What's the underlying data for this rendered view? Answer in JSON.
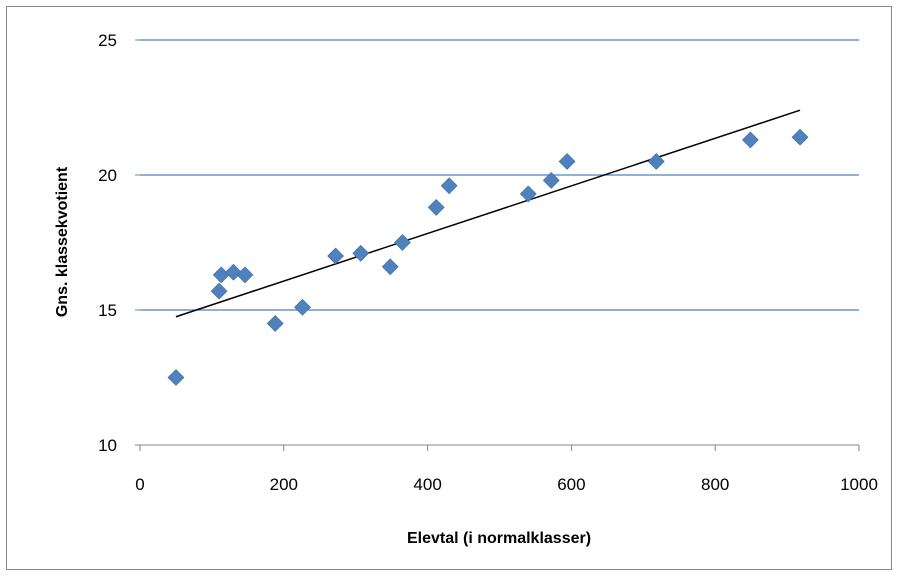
{
  "chart_data": {
    "type": "scatter",
    "title": "",
    "xlabel": "Elevtal (i normalklasser)",
    "ylabel": "Gns. klassekvotient",
    "xlim": [
      0,
      1000
    ],
    "ylim": [
      10,
      25
    ],
    "x_ticks": [
      0,
      200,
      400,
      600,
      800,
      1000
    ],
    "y_ticks": [
      10,
      15,
      20,
      25
    ],
    "grid": "horizontal",
    "legend": "none",
    "colors": {
      "marker": "#4F81BD",
      "grid": "#4F81BD",
      "trendline": "#000000",
      "axis": "#868686"
    },
    "series": [
      {
        "marker": "diamond",
        "points": [
          {
            "x": 50,
            "y": 12.5
          },
          {
            "x": 110,
            "y": 15.7
          },
          {
            "x": 113,
            "y": 16.3
          },
          {
            "x": 130,
            "y": 16.4
          },
          {
            "x": 146,
            "y": 16.3
          },
          {
            "x": 188,
            "y": 14.5
          },
          {
            "x": 226,
            "y": 15.1
          },
          {
            "x": 272,
            "y": 17.0
          },
          {
            "x": 307,
            "y": 17.1
          },
          {
            "x": 348,
            "y": 16.6
          },
          {
            "x": 365,
            "y": 17.5
          },
          {
            "x": 412,
            "y": 18.8
          },
          {
            "x": 430,
            "y": 19.6
          },
          {
            "x": 540,
            "y": 19.3
          },
          {
            "x": 572,
            "y": 19.8
          },
          {
            "x": 594,
            "y": 20.5
          },
          {
            "x": 718,
            "y": 20.5
          },
          {
            "x": 849,
            "y": 21.3
          },
          {
            "x": 918,
            "y": 21.4
          }
        ]
      }
    ],
    "trendline": {
      "type": "linear",
      "x": [
        50,
        918
      ],
      "y": [
        14.75,
        22.4
      ]
    }
  }
}
